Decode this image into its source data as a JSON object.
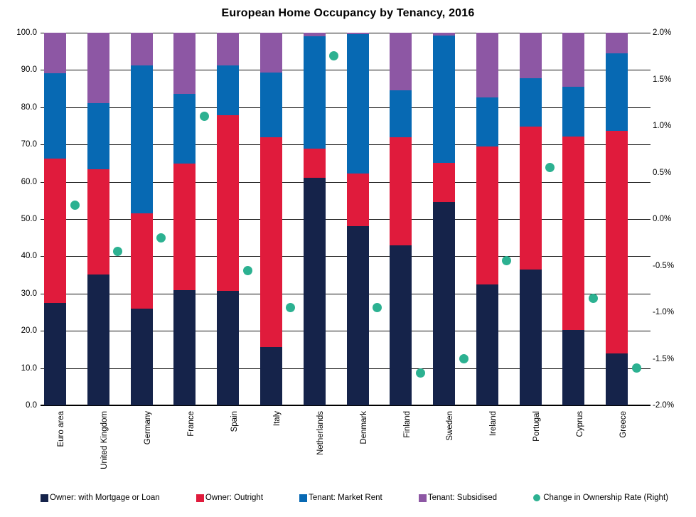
{
  "title": "European Home Occupancy by Tenancy, 2016",
  "chart_data": {
    "type": "bar",
    "stacked": true,
    "grid": true,
    "legend_position": "bottom",
    "categories": [
      "Euro area",
      "United Kingdom",
      "Germany",
      "France",
      "Spain",
      "Italy",
      "Netherlands",
      "Denmark",
      "Finland",
      "Sweden",
      "Ireland",
      "Portugal",
      "Cyprus",
      "Greece"
    ],
    "series": [
      {
        "name": "Owner: with Mortgage or Loan",
        "type": "bar",
        "axis": "left",
        "color": "#15234a",
        "values": [
          27.5,
          35.2,
          26.0,
          30.9,
          30.7,
          15.6,
          61.0,
          48.0,
          43.0,
          54.5,
          32.5,
          36.4,
          20.2,
          13.9
        ]
      },
      {
        "name": "Owner: Outright",
        "type": "bar",
        "axis": "left",
        "color": "#e01b3c",
        "values": [
          38.7,
          28.1,
          25.5,
          33.9,
          47.1,
          56.4,
          7.8,
          14.3,
          29.0,
          10.5,
          37.0,
          38.5,
          52.0,
          59.8
        ]
      },
      {
        "name": "Tenant: Market Rent",
        "type": "bar",
        "axis": "left",
        "color": "#0769b3",
        "values": [
          23.0,
          17.9,
          39.7,
          18.8,
          13.4,
          17.3,
          30.3,
          37.3,
          12.5,
          34.2,
          13.1,
          12.8,
          13.3,
          20.8
        ]
      },
      {
        "name": "Tenant: Subsidised",
        "type": "bar",
        "axis": "left",
        "color": "#8d57a4",
        "values": [
          10.8,
          18.8,
          8.8,
          16.4,
          8.8,
          10.7,
          0.9,
          0.4,
          15.5,
          0.8,
          17.4,
          12.3,
          14.5,
          5.5
        ]
      },
      {
        "name": "Change in Ownership Rate (Right)",
        "type": "scatter",
        "axis": "right",
        "color": "#2cb191",
        "values": [
          0.15,
          -0.35,
          -0.2,
          1.1,
          -0.55,
          -0.95,
          1.75,
          -0.95,
          -1.65,
          -1.5,
          -0.45,
          0.55,
          -0.85,
          -1.6
        ]
      }
    ],
    "left_axis": {
      "min": 0,
      "max": 100,
      "ticks": [
        "100.0",
        "90.0",
        "80.0",
        "70.0",
        "60.0",
        "50.0",
        "40.0",
        "30.0",
        "20.0",
        "10.0",
        "0.0"
      ]
    },
    "right_axis": {
      "min": -2,
      "max": 2,
      "ticks": [
        "2.0%",
        "1.5%",
        "1.0%",
        "0.5%",
        "0.0%",
        "-0.5%",
        "-1.0%",
        "-1.5%",
        "-2.0%"
      ]
    }
  }
}
